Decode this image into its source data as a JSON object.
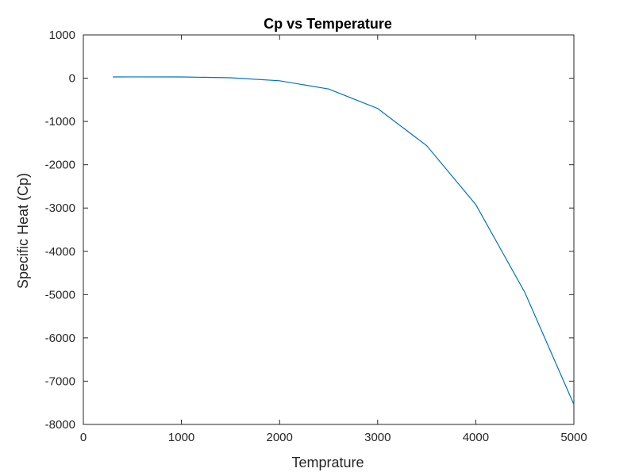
{
  "chart_data": {
    "type": "line",
    "title": "Cp vs Temperature",
    "xlabel": "Temprature",
    "ylabel": "Specific Heat (Cp)",
    "xlim": [
      0,
      5000
    ],
    "ylim": [
      -8000,
      1000
    ],
    "xticks": [
      0,
      1000,
      2000,
      3000,
      4000,
      5000
    ],
    "yticks": [
      1000,
      0,
      -1000,
      -2000,
      -3000,
      -4000,
      -5000,
      -6000,
      -7000,
      -8000
    ],
    "grid": false,
    "box": true,
    "series": [
      {
        "color": "#0072BD",
        "x": [
          300,
          500,
          1000,
          1500,
          2000,
          2500,
          3000,
          3500,
          4000,
          4500,
          5000
        ],
        "y": [
          29,
          30,
          29,
          10,
          -60,
          -250,
          -700,
          -1560,
          -2920,
          -4950,
          -7540
        ]
      }
    ]
  }
}
